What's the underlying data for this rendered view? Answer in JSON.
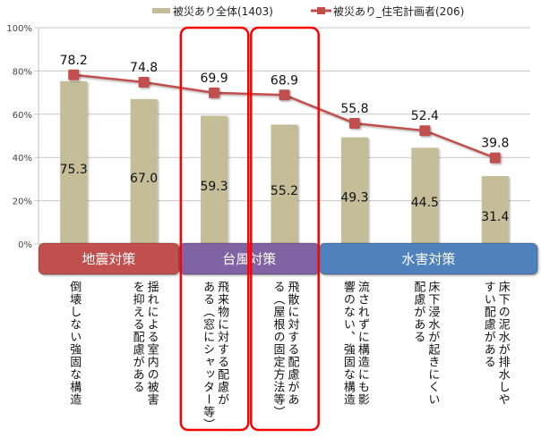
{
  "chart_data": {
    "type": "bar",
    "title": "",
    "xlabel": "",
    "ylabel": "",
    "ylim": [
      0,
      100
    ],
    "yticks": [
      "0%",
      "20%",
      "40%",
      "60%",
      "80%",
      "100%"
    ],
    "grid": true,
    "legend_position": "top",
    "categories": [
      "倒壊しない強固な構造",
      "揺れによる室内の被害を抑える配慮がある",
      "飛来物に対する配慮がある（窓にシャッター等）",
      "飛散に対する配慮がある（屋根の固定方法等）",
      "流されずに構造にも影響のない、強固な構造",
      "床下浸水が起きにくい配慮がある",
      "床下の泥水が排水しやすい配慮がある"
    ],
    "category_lines": [
      [
        "倒壊しない強固な構造"
      ],
      [
        "揺れによる室内の被害",
        "を抑える配慮がある"
      ],
      [
        "飛来物に対する配慮が",
        "ある（窓にシャッター等）"
      ],
      [
        "飛散に対する配慮があ",
        "る（屋根の固定方法等）"
      ],
      [
        "流されずに構造にも影",
        "響のない、強固な構造"
      ],
      [
        "床下浸水が起きにくい",
        "配慮がある"
      ],
      [
        "床下の泥水が排水しや",
        "すい配慮がある"
      ]
    ],
    "series": [
      {
        "name": "被災あり全体(1403)",
        "type": "bar",
        "color": "#c4bd97",
        "values": [
          75.3,
          67.0,
          59.3,
          55.2,
          49.3,
          44.5,
          31.4
        ],
        "labels": [
          "75.3",
          "67.0",
          "59.3",
          "55.2",
          "49.3",
          "44.5",
          "31.4"
        ]
      },
      {
        "name": "被災あり_住宅計画者(206)",
        "type": "line",
        "color": "#c0504d",
        "values": [
          78.2,
          74.8,
          69.9,
          68.9,
          55.8,
          52.4,
          39.8
        ],
        "labels": [
          "78.2",
          "74.8",
          "69.9",
          "68.9",
          "55.8",
          "52.4",
          "39.8"
        ]
      }
    ],
    "groups": [
      {
        "label": "地震対策",
        "from": 0,
        "to": 1,
        "color": "#c0504d"
      },
      {
        "label": "台風対策",
        "from": 2,
        "to": 3,
        "color": "#8064a2"
      },
      {
        "label": "水害対策",
        "from": 4,
        "to": 6,
        "color": "#4f81bd"
      }
    ],
    "highlighted_categories": [
      2,
      3
    ],
    "highlight_color": "#ff0000"
  }
}
